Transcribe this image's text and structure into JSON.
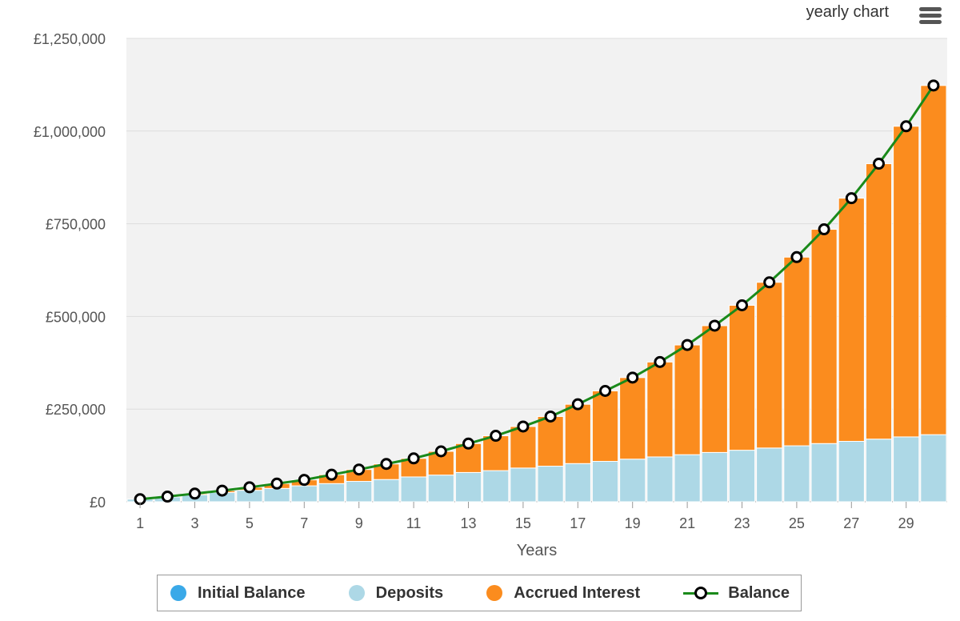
{
  "title": "yearly chart",
  "menu_icon": "hamburger-menu-icon",
  "colors": {
    "initial_balance": "#3aa9e8",
    "deposits": "#add8e6",
    "accrued_interest": "#fb8c1e",
    "balance_line": "#1a8a1a",
    "plot_background": "#f2f2f2"
  },
  "legend": {
    "initial_balance": "Initial Balance",
    "deposits": "Deposits",
    "accrued_interest": "Accrued Interest",
    "balance": "Balance"
  },
  "chart_data": {
    "type": "bar",
    "stacked": true,
    "xlabel": "Years",
    "ylabel": "",
    "ylim": [
      0,
      1250000
    ],
    "y_tick_values": [
      0,
      250000,
      500000,
      750000,
      1000000,
      1250000
    ],
    "y_tick_labels": [
      "£0",
      "£250,000",
      "£500,000",
      "£750,000",
      "£1,000,000",
      "£1,250,000"
    ],
    "x_tick_labels": [
      "1",
      "3",
      "5",
      "7",
      "9",
      "11",
      "13",
      "15",
      "17",
      "19",
      "21",
      "23",
      "25",
      "27",
      "29"
    ],
    "grid": true,
    "legend_position": "bottom-center",
    "categories": [
      1,
      2,
      3,
      4,
      5,
      6,
      7,
      8,
      9,
      10,
      11,
      12,
      13,
      14,
      15,
      16,
      17,
      18,
      19,
      20,
      21,
      22,
      23,
      24,
      25,
      26,
      27,
      28,
      29,
      30
    ],
    "series": [
      {
        "name": "Initial Balance",
        "type": "bar",
        "values": [
          0,
          0,
          0,
          0,
          0,
          0,
          0,
          0,
          0,
          0,
          0,
          0,
          0,
          0,
          0,
          0,
          0,
          0,
          0,
          0,
          0,
          0,
          0,
          0,
          0,
          0,
          0,
          0,
          0,
          0
        ]
      },
      {
        "name": "Deposits",
        "type": "bar",
        "values": [
          7000,
          13000,
          19000,
          25000,
          31000,
          36000,
          43000,
          49000,
          55000,
          60000,
          67000,
          72000,
          79000,
          84000,
          91000,
          96000,
          103000,
          109000,
          115000,
          121000,
          127000,
          133000,
          139000,
          145000,
          151000,
          157000,
          163000,
          169000,
          175000,
          181000
        ]
      },
      {
        "name": "Accrued Interest",
        "type": "bar",
        "values": [
          0,
          1000,
          3000,
          5000,
          8000,
          13000,
          16000,
          24000,
          32000,
          42000,
          50000,
          64000,
          78000,
          94000,
          112000,
          134000,
          160000,
          190000,
          220000,
          256000,
          296000,
          342000,
          391000,
          447000,
          509000,
          578000,
          656000,
          743000,
          838000,
          942000
        ]
      },
      {
        "name": "Balance",
        "type": "line",
        "values": [
          7000,
          14000,
          22000,
          30000,
          39000,
          49000,
          59000,
          73000,
          87000,
          102000,
          117000,
          136000,
          157000,
          178000,
          203000,
          230000,
          263000,
          299000,
          335000,
          377000,
          423000,
          475000,
          530000,
          592000,
          660000,
          735000,
          819000,
          912000,
          1013000,
          1123000
        ]
      }
    ]
  }
}
